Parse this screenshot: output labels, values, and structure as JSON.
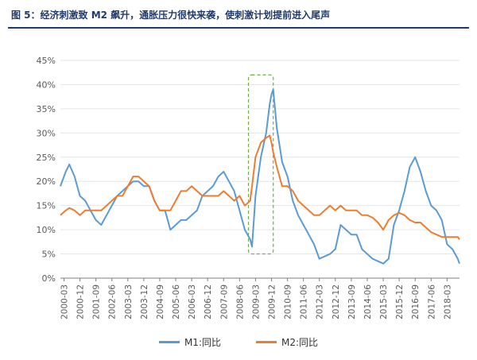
{
  "header": {
    "title": "图 5：经济刺激致 M2 飙升，通胀压力很快来袭，使刺激计划提前进入尾声"
  },
  "colors": {
    "m1": "#5b9bd5",
    "m2": "#ed7d31",
    "highlight": "#70ad47",
    "grid": "#e6e6e6",
    "axis": "#7f7f7f",
    "title": "#1f3b6e"
  },
  "chart_data": {
    "type": "line",
    "title": "图 5：经济刺激致 M2 飙升，通胀压力很快来袭，使刺激计划提前进入尾声",
    "xlabel": "",
    "ylabel": "",
    "x_ticks": [
      "2000-03",
      "2000-12",
      "2001-09",
      "2002-06",
      "2003-03",
      "2003-12",
      "2004-09",
      "2005-06",
      "2006-03",
      "2006-12",
      "2007-09",
      "2008-06",
      "2009-03",
      "2009-12",
      "2010-09",
      "2011-06",
      "2012-03",
      "2012-12",
      "2013-09",
      "2014-06",
      "2015-03",
      "2015-12",
      "2016-09",
      "2017-06",
      "2018-03"
    ],
    "y_ticks": [
      "0%",
      "5%",
      "10%",
      "15%",
      "20%",
      "25%",
      "30%",
      "35%",
      "40%",
      "45%"
    ],
    "ylim": [
      0,
      45
    ],
    "xlim": [
      "2000-01",
      "2018-10"
    ],
    "grid": "horizontal",
    "legend": "bottom",
    "annotations": [
      {
        "type": "dashed-rectangle",
        "x_range": [
          "2008-11",
          "2010-01"
        ],
        "y_range": [
          5,
          42
        ]
      }
    ],
    "series": [
      {
        "name": "M1:同比",
        "color": "#5b9bd5",
        "points": [
          [
            "2000-01",
            19
          ],
          [
            "2000-04",
            22
          ],
          [
            "2000-06",
            23.5
          ],
          [
            "2000-09",
            21
          ],
          [
            "2000-12",
            17
          ],
          [
            "2001-03",
            16
          ],
          [
            "2001-06",
            14
          ],
          [
            "2001-09",
            12
          ],
          [
            "2001-12",
            11
          ],
          [
            "2002-03",
            13
          ],
          [
            "2002-06",
            15
          ],
          [
            "2002-09",
            17
          ],
          [
            "2002-12",
            18
          ],
          [
            "2003-03",
            19
          ],
          [
            "2003-06",
            20
          ],
          [
            "2003-09",
            20
          ],
          [
            "2003-12",
            19
          ],
          [
            "2004-03",
            19
          ],
          [
            "2004-06",
            16
          ],
          [
            "2004-09",
            14
          ],
          [
            "2004-12",
            14
          ],
          [
            "2005-03",
            10
          ],
          [
            "2005-06",
            11
          ],
          [
            "2005-09",
            12
          ],
          [
            "2005-12",
            12
          ],
          [
            "2006-03",
            13
          ],
          [
            "2006-06",
            14
          ],
          [
            "2006-09",
            17
          ],
          [
            "2006-12",
            18
          ],
          [
            "2007-03",
            19
          ],
          [
            "2007-06",
            21
          ],
          [
            "2007-09",
            22
          ],
          [
            "2007-12",
            20
          ],
          [
            "2008-03",
            18
          ],
          [
            "2008-06",
            14
          ],
          [
            "2008-09",
            10
          ],
          [
            "2008-12",
            8
          ],
          [
            "2009-01",
            6.5
          ],
          [
            "2009-03",
            17
          ],
          [
            "2009-06",
            25
          ],
          [
            "2009-09",
            30
          ],
          [
            "2009-11",
            36
          ],
          [
            "2009-12",
            38
          ],
          [
            "2010-01",
            39
          ],
          [
            "2010-03",
            31
          ],
          [
            "2010-06",
            24
          ],
          [
            "2010-09",
            21
          ],
          [
            "2010-12",
            16
          ],
          [
            "2011-03",
            13
          ],
          [
            "2011-06",
            11
          ],
          [
            "2011-09",
            9
          ],
          [
            "2011-12",
            7
          ],
          [
            "2012-03",
            4
          ],
          [
            "2012-06",
            4.5
          ],
          [
            "2012-09",
            5
          ],
          [
            "2012-12",
            6
          ],
          [
            "2013-03",
            11
          ],
          [
            "2013-06",
            10
          ],
          [
            "2013-09",
            9
          ],
          [
            "2013-12",
            9
          ],
          [
            "2014-03",
            6
          ],
          [
            "2014-06",
            5
          ],
          [
            "2014-09",
            4
          ],
          [
            "2014-12",
            3.5
          ],
          [
            "2015-03",
            3
          ],
          [
            "2015-06",
            4
          ],
          [
            "2015-09",
            11
          ],
          [
            "2015-12",
            14
          ],
          [
            "2016-03",
            18
          ],
          [
            "2016-06",
            23
          ],
          [
            "2016-09",
            25
          ],
          [
            "2016-12",
            22
          ],
          [
            "2017-03",
            18
          ],
          [
            "2017-06",
            15
          ],
          [
            "2017-09",
            14
          ],
          [
            "2017-12",
            12
          ],
          [
            "2018-03",
            7
          ],
          [
            "2018-06",
            6
          ],
          [
            "2018-09",
            4
          ],
          [
            "2018-10",
            3
          ]
        ]
      },
      {
        "name": "M2:同比",
        "color": "#ed7d31",
        "points": [
          [
            "2000-01",
            13
          ],
          [
            "2000-04",
            14
          ],
          [
            "2000-06",
            14.5
          ],
          [
            "2000-09",
            14
          ],
          [
            "2000-12",
            13
          ],
          [
            "2001-03",
            14
          ],
          [
            "2001-06",
            14
          ],
          [
            "2001-09",
            14
          ],
          [
            "2001-12",
            14
          ],
          [
            "2002-03",
            15
          ],
          [
            "2002-06",
            16
          ],
          [
            "2002-09",
            17
          ],
          [
            "2002-12",
            17
          ],
          [
            "2003-03",
            19
          ],
          [
            "2003-06",
            21
          ],
          [
            "2003-09",
            21
          ],
          [
            "2003-12",
            20
          ],
          [
            "2004-03",
            19
          ],
          [
            "2004-06",
            16
          ],
          [
            "2004-09",
            14
          ],
          [
            "2004-12",
            14
          ],
          [
            "2005-03",
            14
          ],
          [
            "2005-06",
            16
          ],
          [
            "2005-09",
            18
          ],
          [
            "2005-12",
            18
          ],
          [
            "2006-03",
            19
          ],
          [
            "2006-06",
            18
          ],
          [
            "2006-09",
            17
          ],
          [
            "2006-12",
            17
          ],
          [
            "2007-03",
            17
          ],
          [
            "2007-06",
            17
          ],
          [
            "2007-09",
            18
          ],
          [
            "2007-12",
            17
          ],
          [
            "2008-03",
            16
          ],
          [
            "2008-06",
            17
          ],
          [
            "2008-09",
            15
          ],
          [
            "2008-12",
            16
          ],
          [
            "2009-01",
            19
          ],
          [
            "2009-03",
            25
          ],
          [
            "2009-06",
            28
          ],
          [
            "2009-09",
            29
          ],
          [
            "2009-11",
            29.5
          ],
          [
            "2009-12",
            28
          ],
          [
            "2010-01",
            26
          ],
          [
            "2010-03",
            23
          ],
          [
            "2010-06",
            19
          ],
          [
            "2010-09",
            19
          ],
          [
            "2010-12",
            18
          ],
          [
            "2011-03",
            16
          ],
          [
            "2011-06",
            15
          ],
          [
            "2011-09",
            14
          ],
          [
            "2011-12",
            13
          ],
          [
            "2012-03",
            13
          ],
          [
            "2012-06",
            14
          ],
          [
            "2012-09",
            15
          ],
          [
            "2012-12",
            14
          ],
          [
            "2013-03",
            15
          ],
          [
            "2013-06",
            14
          ],
          [
            "2013-09",
            14
          ],
          [
            "2013-12",
            14
          ],
          [
            "2014-03",
            13
          ],
          [
            "2014-06",
            13
          ],
          [
            "2014-09",
            12.5
          ],
          [
            "2014-12",
            11.5
          ],
          [
            "2015-03",
            10
          ],
          [
            "2015-06",
            12
          ],
          [
            "2015-09",
            13
          ],
          [
            "2015-12",
            13.5
          ],
          [
            "2016-03",
            13
          ],
          [
            "2016-06",
            12
          ],
          [
            "2016-09",
            11.5
          ],
          [
            "2016-12",
            11.5
          ],
          [
            "2017-03",
            10.5
          ],
          [
            "2017-06",
            9.5
          ],
          [
            "2017-09",
            9
          ],
          [
            "2017-12",
            8.5
          ],
          [
            "2018-03",
            8.5
          ],
          [
            "2018-06",
            8.5
          ],
          [
            "2018-09",
            8.5
          ],
          [
            "2018-10",
            8
          ]
        ]
      }
    ]
  }
}
